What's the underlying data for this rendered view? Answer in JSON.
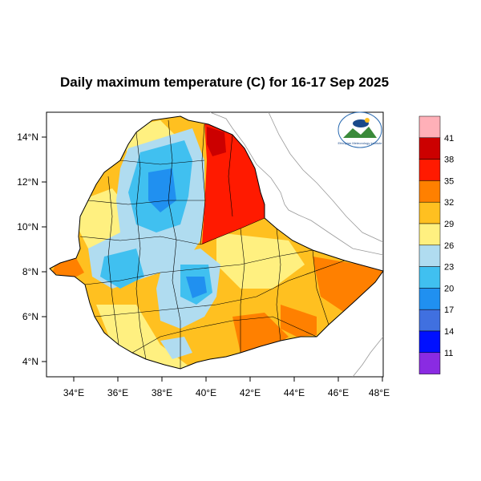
{
  "title": "Daily maximum temperature (C) for 16-17 Sep 2025",
  "x_ticks": [
    "34°E",
    "36°E",
    "38°E",
    "40°E",
    "42°E",
    "44°E",
    "46°E",
    "48°E"
  ],
  "y_ticks": [
    "14°N",
    "12°N",
    "10°N",
    "8°N",
    "6°N",
    "4°N"
  ],
  "colorbar": {
    "labels": [
      "41",
      "38",
      "35",
      "32",
      "29",
      "26",
      "23",
      "20",
      "17",
      "14",
      "11"
    ],
    "colors": [
      "#ffb0b8",
      "#cc0000",
      "#ff1a00",
      "#ff8000",
      "#ffc020",
      "#fff080",
      "#b0dcf0",
      "#40c0f0",
      "#2090f0",
      "#4070e0",
      "#0010ff",
      "#8a2be2"
    ]
  },
  "logo": {
    "name": "ethiopian-meteorology-institute-logo",
    "text": "Ethiopian Meteorology Institute"
  },
  "map": {
    "region": "Ethiopia",
    "variable": "daily maximum temperature",
    "units": "C",
    "lon_range": [
      33,
      48
    ],
    "lat_range": [
      3.2,
      15
    ]
  }
}
